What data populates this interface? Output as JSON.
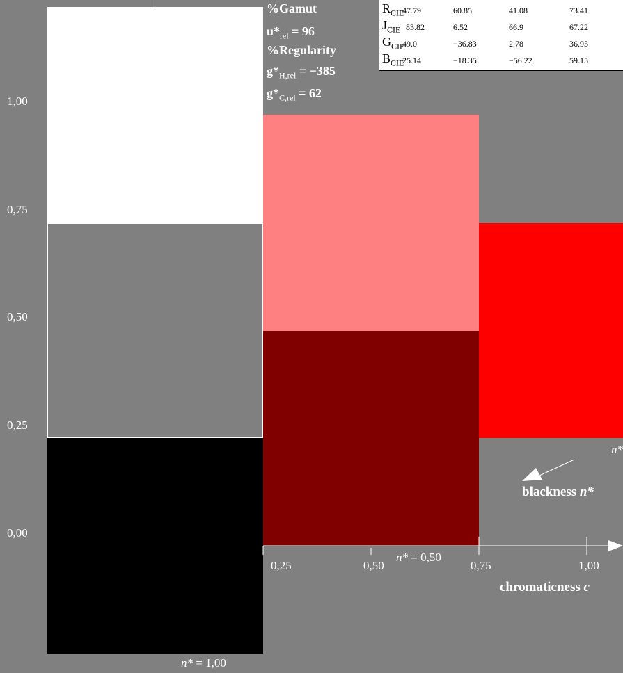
{
  "stats": {
    "gamut": "%Gamut",
    "u_sym": "u*",
    "u_sub": "rel",
    "u_val": " = 96",
    "regularity": "%Regularity",
    "gh_sym": "g*",
    "gh_sub": "H,rel",
    "gh_val": " = −385",
    "gc_sym": "g*",
    "gc_sub": "C,rel",
    "gc_val": " = 62"
  },
  "table": {
    "rows": [
      {
        "letter": "R",
        "sub": "CIE",
        "v1": "47.79",
        "v2": "60.85",
        "v3": "41.08",
        "v4": "73.41"
      },
      {
        "letter": "J",
        "sub": "CIE",
        "v1": "83.82",
        "v2": "6.52",
        "v3": "66.9",
        "v4": "67.22"
      },
      {
        "letter": "G",
        "sub": "CIE",
        "v1": "49.0",
        "v2": "−36.83",
        "v3": "2.78",
        "v4": "36.95"
      },
      {
        "letter": "B",
        "sub": "CIE",
        "v1": "25.14",
        "v2": "−18.35",
        "v3": "−56.22",
        "v4": "59.15"
      }
    ]
  },
  "y_ticks": [
    "1,00",
    "0,75",
    "0,50",
    "0,25",
    "0,00"
  ],
  "x_ticks": [
    "0,25",
    "0,50",
    "0,75",
    "1,00"
  ],
  "labels": {
    "n_half_sym": "n*",
    "n_half_val": " = 0,50",
    "n_one_sym": "n*",
    "n_one_val": " = 1,00",
    "n_edge": "n*",
    "blackness_text": "blackness ",
    "blackness_sym": "n*",
    "chroma_text": "chromaticness ",
    "chroma_sym": "c"
  },
  "colors": {
    "background": "#808080",
    "white": "#ffffff",
    "mid_gray": "#808080",
    "black": "#000000",
    "light_red": "#ff8080",
    "dark_red": "#800000",
    "red": "#ff0000"
  }
}
